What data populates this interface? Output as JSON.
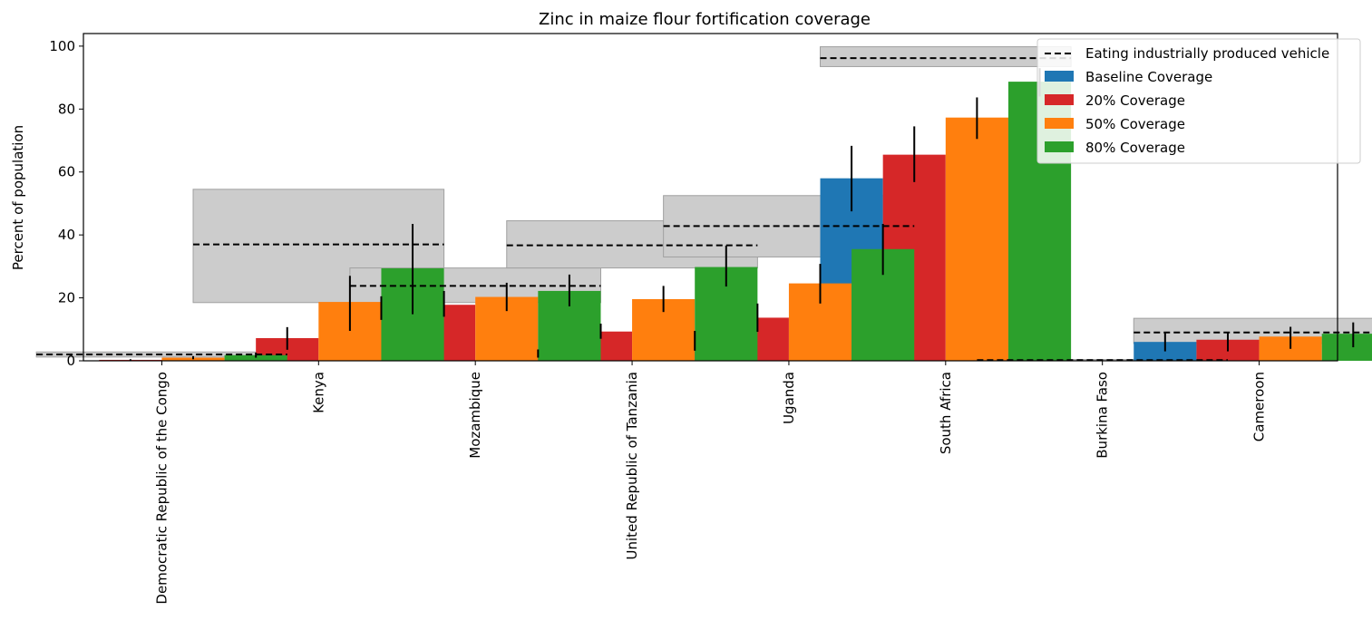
{
  "chart_data": {
    "type": "bar",
    "title": "Zinc in maize flour fortification coverage",
    "xlabel": "",
    "ylabel": "Percent of population",
    "ylim": [
      0,
      104
    ],
    "yticks": [
      0,
      20,
      40,
      60,
      80,
      100
    ],
    "grid": false,
    "legend_position": "top-right",
    "categories": [
      "Democratic Republic of the Congo",
      "Kenya",
      "Mozambique",
      "United Republic of Tanzania",
      "Uganda",
      "South Africa",
      "Burkina Faso",
      "Cameroon"
    ],
    "reference": {
      "name": "Eating industrially produced vehicle",
      "style": "dashed",
      "color": "#000000",
      "band_color": "#cccccc",
      "values": [
        2.0,
        37.0,
        23.8,
        36.7,
        42.8,
        96.2,
        0.2,
        9.0
      ],
      "lower": [
        1.2,
        18.5,
        18.5,
        29.5,
        33.0,
        93.5,
        0.0,
        5.5
      ],
      "upper": [
        2.8,
        54.5,
        29.5,
        44.5,
        52.5,
        99.8,
        0.4,
        13.5
      ]
    },
    "series": [
      {
        "name": "Baseline Coverage",
        "color": "#1f77b4",
        "values": [
          0.0,
          0.0,
          16.5,
          2.2,
          6.4,
          58.0,
          0.0,
          6.0
        ],
        "error_low": [
          0.0,
          0.0,
          13.0,
          1.0,
          3.2,
          47.5,
          0.0,
          3.0
        ],
        "error_high": [
          0.0,
          0.0,
          20.5,
          3.6,
          9.5,
          68.3,
          0.0,
          9.0
        ]
      },
      {
        "name": "20% Coverage",
        "color": "#d62728",
        "values": [
          0.3,
          7.2,
          17.8,
          9.3,
          13.7,
          65.5,
          0.0,
          6.7
        ],
        "error_low": [
          0.1,
          3.5,
          14.0,
          7.0,
          9.2,
          56.8,
          0.0,
          3.0
        ],
        "error_high": [
          0.5,
          10.7,
          22.2,
          11.8,
          18.2,
          74.5,
          0.0,
          9.2
        ]
      },
      {
        "name": "50% Coverage",
        "color": "#ff7f0e",
        "values": [
          1.0,
          18.7,
          20.3,
          19.6,
          24.6,
          77.3,
          0.0,
          7.7
        ],
        "error_low": [
          0.5,
          9.5,
          15.8,
          15.5,
          18.2,
          70.5,
          0.0,
          3.8
        ],
        "error_high": [
          1.5,
          27.0,
          24.8,
          23.8,
          30.8,
          83.7,
          0.0,
          10.8
        ]
      },
      {
        "name": "80% Coverage",
        "color": "#2ca02c",
        "values": [
          1.8,
          29.4,
          22.2,
          29.8,
          35.5,
          88.7,
          0.0,
          8.6
        ],
        "error_low": [
          1.0,
          14.8,
          17.3,
          23.6,
          27.3,
          84.0,
          0.0,
          4.3
        ],
        "error_high": [
          2.6,
          43.5,
          27.4,
          36.6,
          43.5,
          93.0,
          0.0,
          12.2
        ]
      }
    ]
  }
}
